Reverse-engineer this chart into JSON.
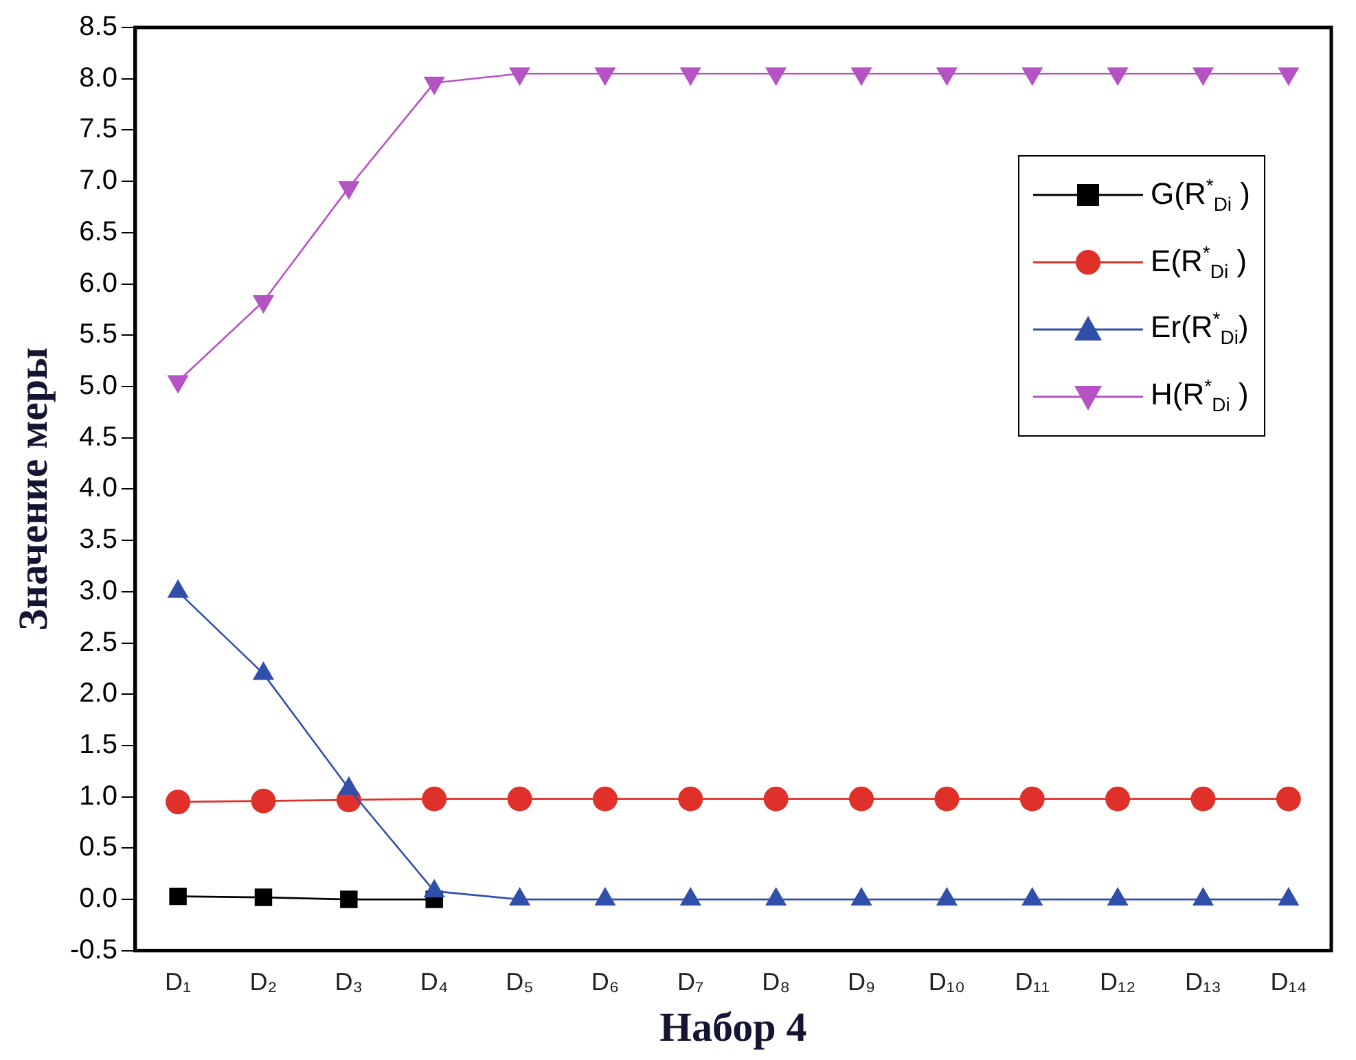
{
  "chart_data": {
    "type": "line",
    "xlabel": "Набор 4",
    "ylabel": "Значение меры",
    "categories": [
      "D₁",
      "D₂",
      "D₃",
      "D₄",
      "D₅",
      "D₆",
      "D₇",
      "D₈",
      "D₉",
      "D₁₀",
      "D₁₁",
      "D₁₂",
      "D₁₃",
      "D₁₄"
    ],
    "series": [
      {
        "name": "G(R$^{*}$$_{Di}$ )",
        "color": "#000000",
        "marker": "square",
        "values": [
          0.03,
          0.02,
          0.0,
          0.0,
          null,
          null,
          null,
          null,
          null,
          null,
          null,
          null,
          null,
          null
        ]
      },
      {
        "name": "E(R$^{*}$$_{Di}$ )",
        "color": "#e0302a",
        "marker": "circle",
        "values": [
          0.95,
          0.96,
          0.97,
          0.98,
          0.98,
          0.98,
          0.98,
          0.98,
          0.98,
          0.98,
          0.98,
          0.98,
          0.98,
          0.98
        ]
      },
      {
        "name": "Er(R$^{*}$$_{Di}$)",
        "color": "#2f4faa",
        "marker": "triangle",
        "values": [
          3.0,
          2.2,
          1.08,
          0.08,
          0.0,
          0.0,
          0.0,
          0.0,
          0.0,
          0.0,
          0.0,
          0.0,
          0.0,
          0.0
        ]
      },
      {
        "name": "H(R$^{*}$$_{Di}$ )",
        "color": "#b553c4",
        "marker": "triangle-down",
        "values": [
          5.05,
          5.83,
          6.94,
          7.96,
          8.05,
          8.05,
          8.05,
          8.05,
          8.05,
          8.05,
          8.05,
          8.05,
          8.05,
          8.05
        ]
      }
    ],
    "ylim": [
      -0.5,
      8.5
    ],
    "yticks": [
      {
        "value": -0.5,
        "label": "-0.5"
      },
      {
        "value": 0,
        "label": "0.0"
      },
      {
        "value": 0.5,
        "label": "0.5"
      },
      {
        "value": 1,
        "label": "1.0"
      },
      {
        "value": 1.5,
        "label": "1.5"
      },
      {
        "value": 2,
        "label": "2.0"
      },
      {
        "value": 2.5,
        "label": "2.5"
      },
      {
        "value": 3,
        "label": "3.0"
      },
      {
        "value": 3.5,
        "label": "3.5"
      },
      {
        "value": 4,
        "label": "4.0"
      },
      {
        "value": 4.5,
        "label": "4.5"
      },
      {
        "value": 5,
        "label": "5.0"
      },
      {
        "value": 5.5,
        "label": "5.5"
      },
      {
        "value": 6,
        "label": "6.0"
      },
      {
        "value": 6.5,
        "label": "6.5"
      },
      {
        "value": 7,
        "label": "7.0"
      },
      {
        "value": 7.5,
        "label": "7.5"
      },
      {
        "value": 8,
        "label": "8.0"
      },
      {
        "value": 8.5,
        "label": "8.5"
      }
    ],
    "grid": false,
    "legend": "top right",
    "line_style": "solid"
  }
}
